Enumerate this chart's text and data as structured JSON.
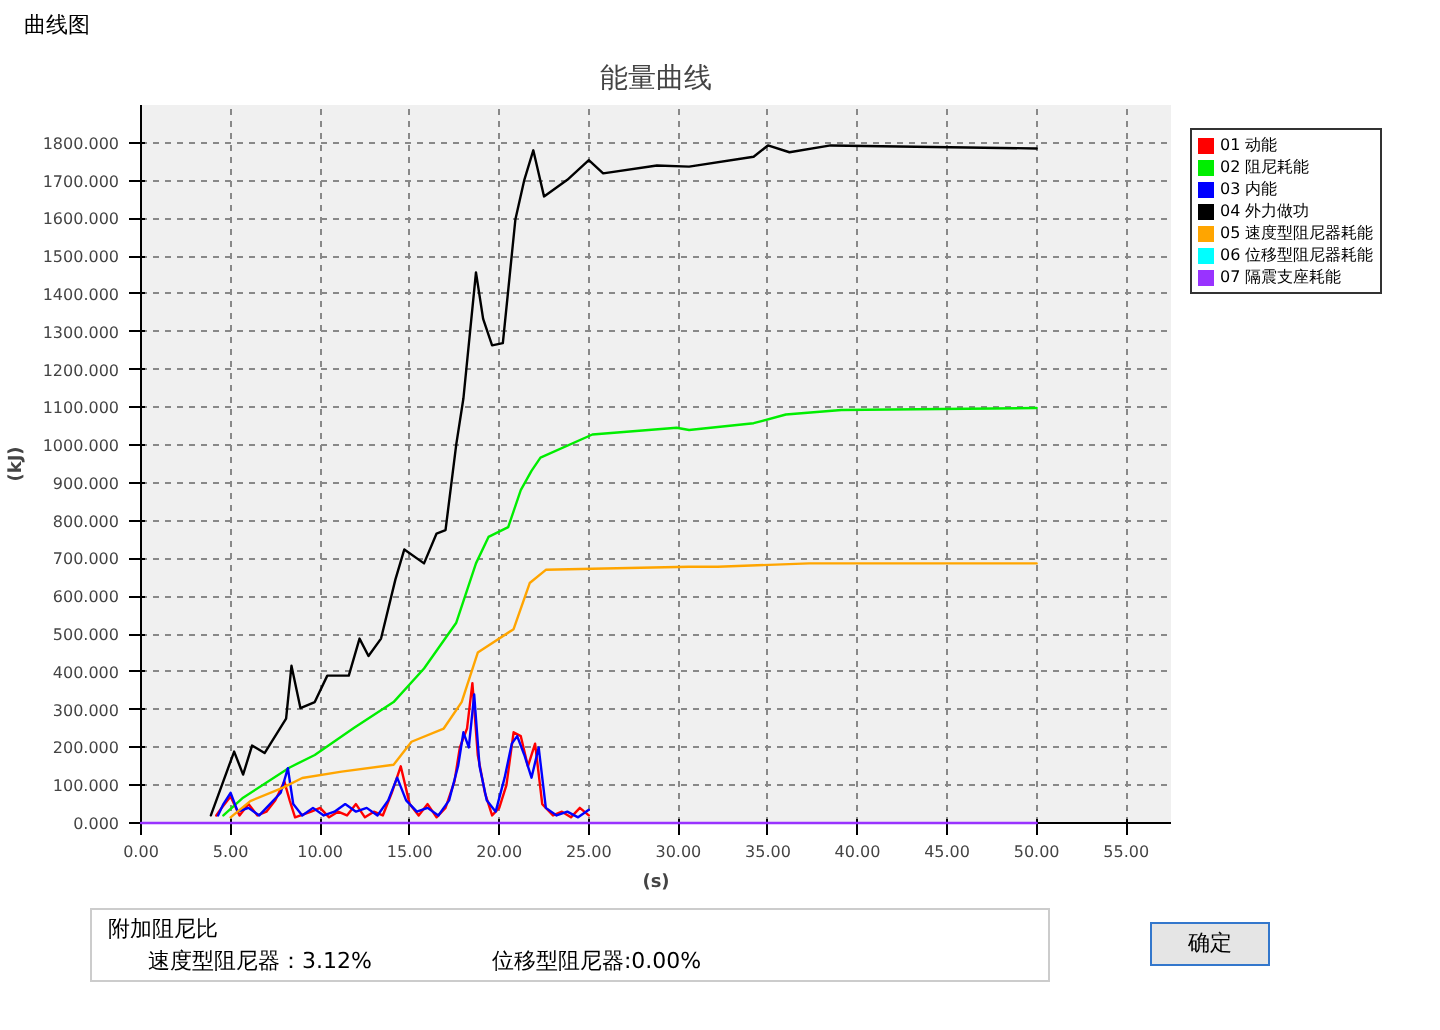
{
  "chart_data": {
    "type": "line",
    "title": "能量曲线",
    "xlabel": "(s)",
    "ylabel": "(kJ)",
    "xlim": [
      0,
      57.5
    ],
    "ylim": [
      0,
      1900
    ],
    "xticks": [
      {
        "value": 0,
        "label": "0.00"
      },
      {
        "value": 5,
        "label": "5.00"
      },
      {
        "value": 10,
        "label": "10.00"
      },
      {
        "value": 15,
        "label": "15.00"
      },
      {
        "value": 20,
        "label": "20.00"
      },
      {
        "value": 25,
        "label": "25.00"
      },
      {
        "value": 30,
        "label": "30.00"
      },
      {
        "value": 35,
        "label": "35.00"
      },
      {
        "value": 40,
        "label": "40.00"
      },
      {
        "value": 45,
        "label": "45.00"
      },
      {
        "value": 50,
        "label": "50.00"
      },
      {
        "value": 55,
        "label": "55.00"
      }
    ],
    "yticks": [
      {
        "value": 0,
        "label": "0.000"
      },
      {
        "value": 100,
        "label": "100.000"
      },
      {
        "value": 200,
        "label": "200.000"
      },
      {
        "value": 300,
        "label": "300.000"
      },
      {
        "value": 400,
        "label": "400.000"
      },
      {
        "value": 500,
        "label": "500.000"
      },
      {
        "value": 600,
        "label": "600.000"
      },
      {
        "value": 700,
        "label": "700.000"
      },
      {
        "value": 800,
        "label": "800.000"
      },
      {
        "value": 900,
        "label": "900.000"
      },
      {
        "value": 1000,
        "label": "1000.000"
      },
      {
        "value": 1100,
        "label": "1100.000"
      },
      {
        "value": 1200,
        "label": "1200.000"
      },
      {
        "value": 1300,
        "label": "1300.000"
      },
      {
        "value": 1400,
        "label": "1400.000"
      },
      {
        "value": 1500,
        "label": "1500.000"
      },
      {
        "value": 1600,
        "label": "1600.000"
      },
      {
        "value": 1700,
        "label": "1700.000"
      },
      {
        "value": 1800,
        "label": "1800.000"
      }
    ],
    "grid": true,
    "legend": "top right",
    "line_style": "solid",
    "marker": "none",
    "annotations": [
      "曲线图",
      "附加阻尼比",
      "速度型阻尼器：3.12%",
      "位移型阻尼器:0.00%",
      "确定"
    ],
    "series": [
      {
        "name": "01 动能",
        "color": "#ff0000",
        "x": [
          4.2,
          4.5,
          5.0,
          5.5,
          6.0,
          6.5,
          7.0,
          7.5,
          8.0,
          8.3,
          8.6,
          9.5,
          10.0,
          10.5,
          11.0,
          11.5,
          12.0,
          12.5,
          13.0,
          13.5,
          14.0,
          14.5,
          15.0,
          15.5,
          16.0,
          16.5,
          17.0,
          17.5,
          17.8,
          18.2,
          18.5,
          18.8,
          19.2,
          19.6,
          20.0,
          20.4,
          20.8,
          21.2,
          21.6,
          22.0,
          22.4,
          23.0,
          23.5,
          24.0,
          24.5,
          25.0
        ],
        "values": [
          20,
          40,
          70,
          20,
          50,
          20,
          30,
          60,
          110,
          60,
          15,
          30,
          40,
          15,
          30,
          20,
          50,
          15,
          30,
          20,
          80,
          150,
          50,
          20,
          50,
          15,
          40,
          110,
          200,
          250,
          370,
          180,
          80,
          20,
          40,
          100,
          240,
          230,
          150,
          210,
          50,
          20,
          30,
          15,
          40,
          20
        ]
      },
      {
        "name": "02 阻尼耗能",
        "color": "#00ee00",
        "x": [
          4.6,
          5.7,
          8.3,
          9.7,
          11.9,
          14.1,
          15.8,
          17.6,
          18.7,
          19.4,
          20.5,
          21.2,
          21.8,
          22.3,
          25.2,
          29.9,
          30.6,
          34.2,
          36.0,
          39.1,
          50
        ],
        "values": [
          20,
          67,
          147,
          180,
          252,
          320,
          409,
          530,
          687,
          757,
          783,
          881,
          932,
          967,
          1028,
          1046,
          1040,
          1058,
          1081,
          1093,
          1098
        ]
      },
      {
        "name": "03 内能",
        "color": "#0000ff",
        "x": [
          4.3,
          4.6,
          5.0,
          5.4,
          6.0,
          6.6,
          7.2,
          7.8,
          8.2,
          8.5,
          9.0,
          9.6,
          10.2,
          10.8,
          11.4,
          12.0,
          12.6,
          13.2,
          13.8,
          14.3,
          14.8,
          15.4,
          16.0,
          16.6,
          17.2,
          17.7,
          18.0,
          18.3,
          18.6,
          18.9,
          19.3,
          19.8,
          20.3,
          20.7,
          21.0,
          21.4,
          21.8,
          22.2,
          22.6,
          23.2,
          23.8,
          24.4,
          25.0
        ],
        "values": [
          20,
          50,
          80,
          30,
          40,
          20,
          50,
          80,
          145,
          50,
          20,
          40,
          20,
          30,
          50,
          30,
          40,
          20,
          60,
          120,
          60,
          30,
          40,
          20,
          60,
          150,
          240,
          200,
          340,
          150,
          60,
          30,
          120,
          210,
          230,
          180,
          120,
          200,
          40,
          20,
          30,
          15,
          35
        ]
      },
      {
        "name": "04 外力做功",
        "color": "#000000",
        "x": [
          3.9,
          5.2,
          5.7,
          6.2,
          6.9,
          8.1,
          8.4,
          8.9,
          9.7,
          10.4,
          11.6,
          12.2,
          12.7,
          13.4,
          14.2,
          14.7,
          15.8,
          16.5,
          17.0,
          17.6,
          18.0,
          18.7,
          19.1,
          19.6,
          20.2,
          20.9,
          21.4,
          21.9,
          22.5,
          23.8,
          25.0,
          25.8,
          28.8,
          30.6,
          34.2,
          35.0,
          36.2,
          38.5,
          50
        ],
        "values": [
          20,
          189,
          128,
          205,
          185,
          276,
          416,
          304,
          320,
          390,
          390,
          488,
          442,
          488,
          644,
          724,
          687,
          766,
          775,
          1002,
          1124,
          1457,
          1334,
          1264,
          1270,
          1597,
          1702,
          1780,
          1658,
          1702,
          1754,
          1719,
          1740,
          1737,
          1763,
          1793,
          1775,
          1793,
          1785
        ]
      },
      {
        "name": "05 速度型阻尼器耗能",
        "color": "#ffa500",
        "x": [
          5.0,
          6.1,
          7.9,
          9.0,
          11.2,
          14.1,
          15.1,
          16.9,
          17.9,
          18.8,
          20.8,
          21.7,
          22.6,
          25.2,
          30.6,
          32.2,
          37.3,
          50
        ],
        "values": [
          15,
          58,
          93,
          119,
          136,
          154,
          215,
          250,
          320,
          451,
          513,
          635,
          670,
          673,
          678,
          678,
          687,
          687
        ]
      },
      {
        "name": "06 位移型阻尼器耗能",
        "color": "#00ffff"
      },
      {
        "name": "07 隔震支座耗能",
        "color": "#9933ff",
        "x": [
          0,
          50
        ],
        "values": [
          0,
          0
        ]
      }
    ]
  }
}
